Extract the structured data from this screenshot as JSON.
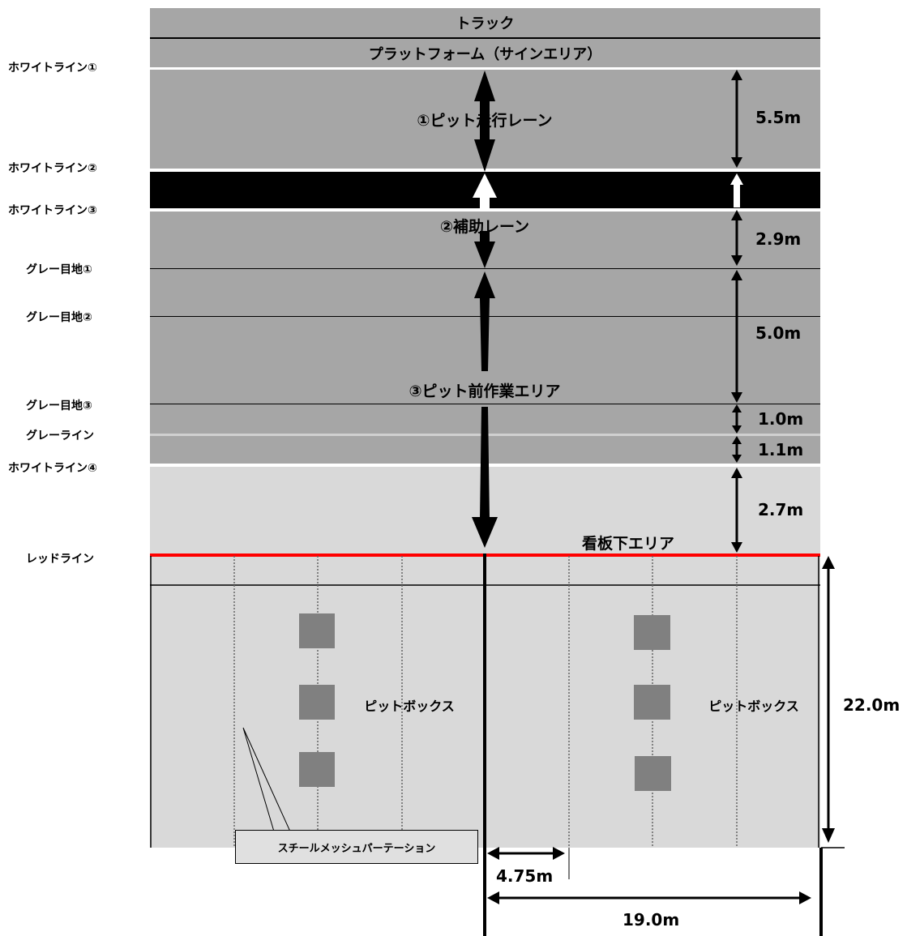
{
  "top_bands": {
    "track": "トラック",
    "platform": "プラットフォーム（サインエリア）"
  },
  "left_labels": {
    "white_line_1": "ホワイトライン①",
    "white_line_2": "ホワイトライン②",
    "white_line_3": "ホワイトライン③",
    "gray_joint_1": "グレー目地①",
    "gray_joint_2": "グレー目地②",
    "gray_joint_3": "グレー目地③",
    "gray_line": "グレーライン",
    "white_line_4": "ホワイトライン④",
    "red_line": "レッドライン"
  },
  "area_labels": {
    "pit_lane": "①ピット走行レーン",
    "aux_lane": "②補助レーン",
    "pit_front": "③ピット前作業エリア",
    "sign_area": "看板下エリア",
    "pit_box_left": "ピットボックス",
    "pit_box_right": "ピットボックス",
    "mesh_partition": "スチールメッシュパーテーション"
  },
  "dimensions": {
    "pit_lane_width": "5.5m",
    "aux_lane_width": "2.9m",
    "work_area_width": "5.0m",
    "band_1": "1.0m",
    "band_2": "1.1m",
    "sign_area_width": "2.7m",
    "pit_depth": "22.0m",
    "box_width": "4.75m",
    "garage_width": "19.0m"
  },
  "colors": {
    "asphalt": "#a6a6a6",
    "light_area": "#d9d9d9",
    "red_line": "#ff0000",
    "lane_black": "#000000",
    "box": "#808080"
  }
}
